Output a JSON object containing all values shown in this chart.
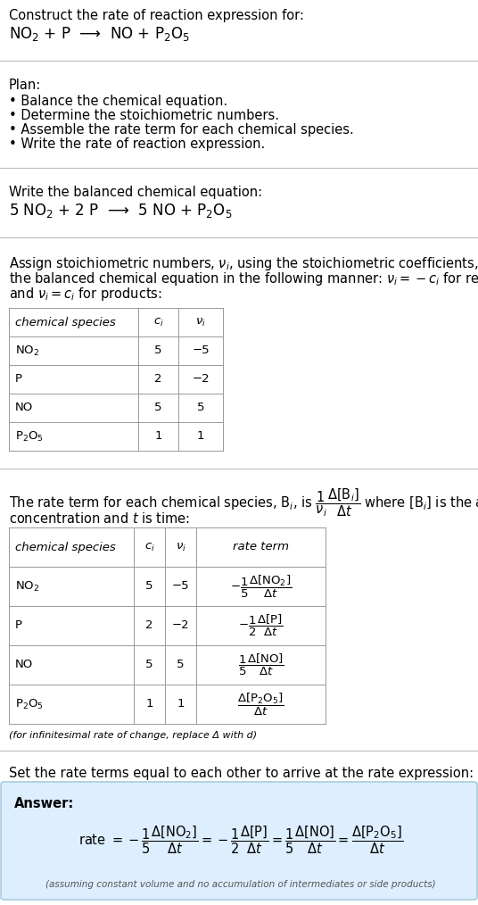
{
  "title_line1": "Construct the rate of reaction expression for:",
  "reaction_unbalanced": "NO$_2$ + P  ⟶  NO + P$_2$O$_5$",
  "plan_title": "Plan:",
  "plan_items": [
    "• Balance the chemical equation.",
    "• Determine the stoichiometric numbers.",
    "• Assemble the rate term for each chemical species.",
    "• Write the rate of reaction expression."
  ],
  "balanced_title": "Write the balanced chemical equation:",
  "balanced_eq": "5 NO$_2$ + 2 P  ⟶  5 NO + P$_2$O$_5$",
  "stoich_intro_lines": [
    "Assign stoichiometric numbers, $\\nu_i$, using the stoichiometric coefficients, $c_i$, from",
    "the balanced chemical equation in the following manner: $\\nu_i = -c_i$ for reactants",
    "and $\\nu_i = c_i$ for products:"
  ],
  "table1_headers": [
    "chemical species",
    "$c_i$",
    "$\\nu_i$"
  ],
  "table1_rows": [
    [
      "NO$_2$",
      "5",
      "−5"
    ],
    [
      "P",
      "2",
      "−2"
    ],
    [
      "NO",
      "5",
      "5"
    ],
    [
      "P$_2$O$_5$",
      "1",
      "1"
    ]
  ],
  "rate_term_line1": "The rate term for each chemical species, B$_i$, is $\\dfrac{1}{\\nu_i}\\dfrac{\\Delta[\\mathrm{B}_i]}{\\Delta t}$ where [B$_i$] is the amount",
  "rate_term_line2": "concentration and $t$ is time:",
  "table2_headers": [
    "chemical species",
    "$c_i$",
    "$\\nu_i$",
    "rate term"
  ],
  "table2_rows": [
    [
      "NO$_2$",
      "5",
      "−5",
      "$-\\dfrac{1}{5}\\dfrac{\\Delta[\\mathrm{NO}_2]}{\\Delta t}$"
    ],
    [
      "P",
      "2",
      "−2",
      "$-\\dfrac{1}{2}\\dfrac{\\Delta[\\mathrm{P}]}{\\Delta t}$"
    ],
    [
      "NO",
      "5",
      "5",
      "$\\dfrac{1}{5}\\dfrac{\\Delta[\\mathrm{NO}]}{\\Delta t}$"
    ],
    [
      "P$_2$O$_5$",
      "1",
      "1",
      "$\\dfrac{\\Delta[\\mathrm{P_2O_5}]}{\\Delta t}$"
    ]
  ],
  "infinitesimal_note": "(for infinitesimal rate of change, replace Δ with d)",
  "set_equal_text": "Set the rate terms equal to each other to arrive at the rate expression:",
  "answer_label": "Answer:",
  "rate_expression": "rate $= -\\dfrac{1}{5}\\dfrac{\\Delta[\\mathrm{NO}_2]}{\\Delta t} = -\\dfrac{1}{2}\\dfrac{\\Delta[\\mathrm{P}]}{\\Delta t} = \\dfrac{1}{5}\\dfrac{\\Delta[\\mathrm{NO}]}{\\Delta t} = \\dfrac{\\Delta[\\mathrm{P_2O_5}]}{\\Delta t}$",
  "assumption_note": "(assuming constant volume and no accumulation of intermediates or side products)",
  "answer_box_color": "#ddeeff",
  "answer_box_edge": "#aaccdd",
  "bg_color": "#ffffff",
  "text_color": "#000000",
  "table_border_color": "#999999",
  "separator_color": "#bbbbbb",
  "font_size": 10.5,
  "small_font_size": 9.5
}
